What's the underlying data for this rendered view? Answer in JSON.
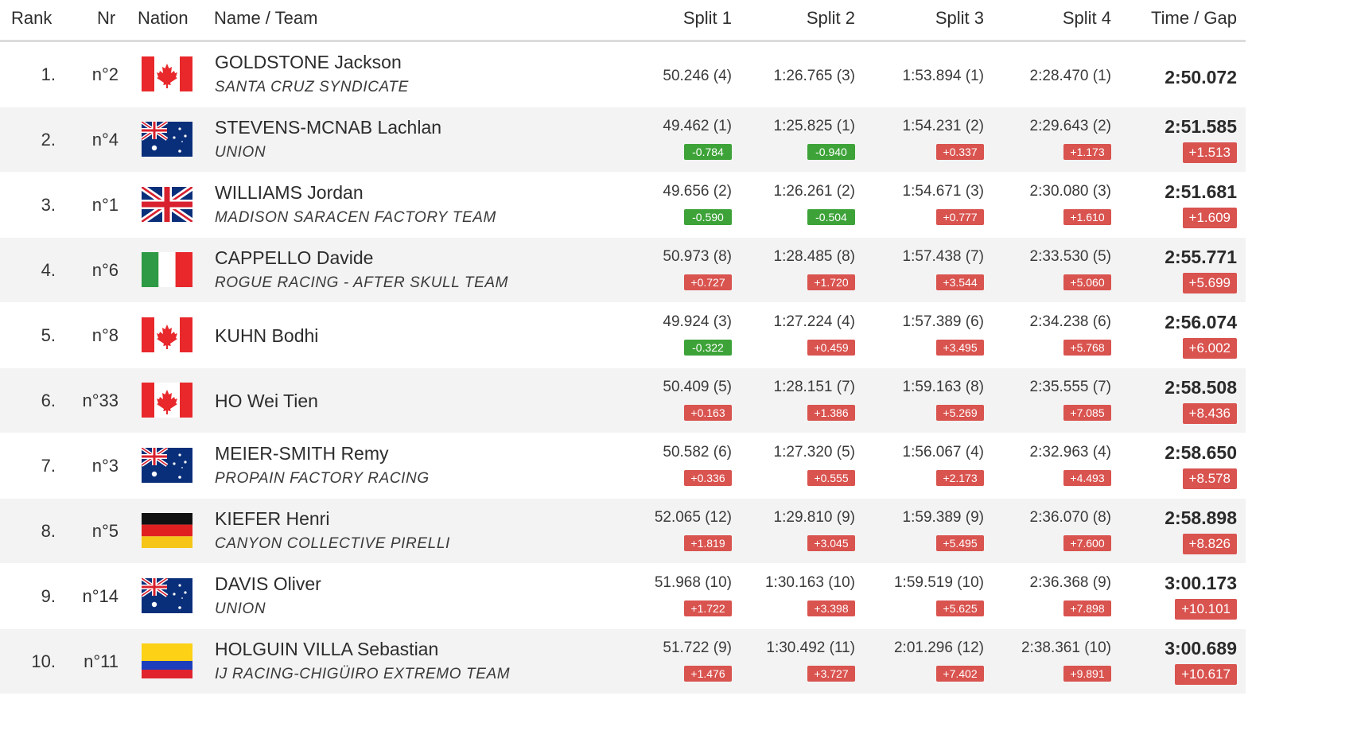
{
  "headers": {
    "rank": "Rank",
    "nr": "Nr",
    "nation": "Nation",
    "name_team": "Name / Team",
    "split1": "Split 1",
    "split2": "Split 2",
    "split3": "Split 3",
    "split4": "Split 4",
    "time_gap": "Time / Gap"
  },
  "rows": [
    {
      "rank": "1.",
      "nr": "n°2",
      "nation": "canada-flag-icon",
      "name": "GOLDSTONE Jackson",
      "team": "SANTA CRUZ SYNDICATE",
      "s1": "50.246 (4)",
      "s1_gap": "",
      "s2": "1:26.765 (3)",
      "s2_gap": "",
      "s3": "1:53.894 (1)",
      "s3_gap": "",
      "s4": "2:28.470 (1)",
      "s4_gap": "",
      "time": "2:50.072",
      "gap": ""
    },
    {
      "rank": "2.",
      "nr": "n°4",
      "nation": "australia-flag-icon",
      "name": "STEVENS-MCNAB Lachlan",
      "team": "UNION",
      "s1": "49.462 (1)",
      "s1_gap": "-0.784",
      "s2": "1:25.825 (1)",
      "s2_gap": "-0.940",
      "s3": "1:54.231 (2)",
      "s3_gap": "+0.337",
      "s4": "2:29.643 (2)",
      "s4_gap": "+1.173",
      "time": "2:51.585",
      "gap": "+1.513"
    },
    {
      "rank": "3.",
      "nr": "n°1",
      "nation": "uk-flag-icon",
      "name": "WILLIAMS Jordan",
      "team": "MADISON SARACEN FACTORY TEAM",
      "s1": "49.656 (2)",
      "s1_gap": "-0.590",
      "s2": "1:26.261 (2)",
      "s2_gap": "-0.504",
      "s3": "1:54.671 (3)",
      "s3_gap": "+0.777",
      "s4": "2:30.080 (3)",
      "s4_gap": "+1.610",
      "time": "2:51.681",
      "gap": "+1.609"
    },
    {
      "rank": "4.",
      "nr": "n°6",
      "nation": "italy-flag-icon",
      "name": "CAPPELLO Davide",
      "team": "ROGUE RACING - AFTER SKULL TEAM",
      "s1": "50.973 (8)",
      "s1_gap": "+0.727",
      "s2": "1:28.485 (8)",
      "s2_gap": "+1.720",
      "s3": "1:57.438 (7)",
      "s3_gap": "+3.544",
      "s4": "2:33.530 (5)",
      "s4_gap": "+5.060",
      "time": "2:55.771",
      "gap": "+5.699"
    },
    {
      "rank": "5.",
      "nr": "n°8",
      "nation": "canada-flag-icon",
      "name": "KUHN Bodhi",
      "team": "",
      "s1": "49.924 (3)",
      "s1_gap": "-0.322",
      "s2": "1:27.224 (4)",
      "s2_gap": "+0.459",
      "s3": "1:57.389 (6)",
      "s3_gap": "+3.495",
      "s4": "2:34.238 (6)",
      "s4_gap": "+5.768",
      "time": "2:56.074",
      "gap": "+6.002"
    },
    {
      "rank": "6.",
      "nr": "n°33",
      "nation": "canada-flag-icon",
      "name": "HO Wei Tien",
      "team": "",
      "s1": "50.409 (5)",
      "s1_gap": "+0.163",
      "s2": "1:28.151 (7)",
      "s2_gap": "+1.386",
      "s3": "1:59.163 (8)",
      "s3_gap": "+5.269",
      "s4": "2:35.555 (7)",
      "s4_gap": "+7.085",
      "time": "2:58.508",
      "gap": "+8.436"
    },
    {
      "rank": "7.",
      "nr": "n°3",
      "nation": "australia-flag-icon",
      "name": "MEIER-SMITH Remy",
      "team": "PROPAIN FACTORY RACING",
      "s1": "50.582 (6)",
      "s1_gap": "+0.336",
      "s2": "1:27.320 (5)",
      "s2_gap": "+0.555",
      "s3": "1:56.067 (4)",
      "s3_gap": "+2.173",
      "s4": "2:32.963 (4)",
      "s4_gap": "+4.493",
      "time": "2:58.650",
      "gap": "+8.578"
    },
    {
      "rank": "8.",
      "nr": "n°5",
      "nation": "germany-flag-icon",
      "name": "KIEFER Henri",
      "team": "CANYON COLLECTIVE PIRELLI",
      "s1": "52.065 (12)",
      "s1_gap": "+1.819",
      "s2": "1:29.810 (9)",
      "s2_gap": "+3.045",
      "s3": "1:59.389 (9)",
      "s3_gap": "+5.495",
      "s4": "2:36.070 (8)",
      "s4_gap": "+7.600",
      "time": "2:58.898",
      "gap": "+8.826"
    },
    {
      "rank": "9.",
      "nr": "n°14",
      "nation": "australia-flag-icon",
      "name": "DAVIS Oliver",
      "team": "UNION",
      "s1": "51.968 (10)",
      "s1_gap": "+1.722",
      "s2": "1:30.163 (10)",
      "s2_gap": "+3.398",
      "s3": "1:59.519 (10)",
      "s3_gap": "+5.625",
      "s4": "2:36.368 (9)",
      "s4_gap": "+7.898",
      "time": "3:00.173",
      "gap": "+10.101"
    },
    {
      "rank": "10.",
      "nr": "n°11",
      "nation": "colombia-flag-icon",
      "name": "HOLGUIN VILLA Sebastian",
      "team": "IJ RACING-CHIGÜIRO EXTREMO TEAM",
      "s1": "51.722 (9)",
      "s1_gap": "+1.476",
      "s2": "1:30.492 (11)",
      "s2_gap": "+3.727",
      "s3": "2:01.296 (12)",
      "s3_gap": "+7.402",
      "s4": "2:38.361 (10)",
      "s4_gap": "+9.891",
      "time": "3:00.689",
      "gap": "+10.617"
    }
  ],
  "colors": {
    "negative_gap": "#3da338",
    "positive_gap": "#d9534f",
    "row_alt": "#f3f3f3"
  }
}
